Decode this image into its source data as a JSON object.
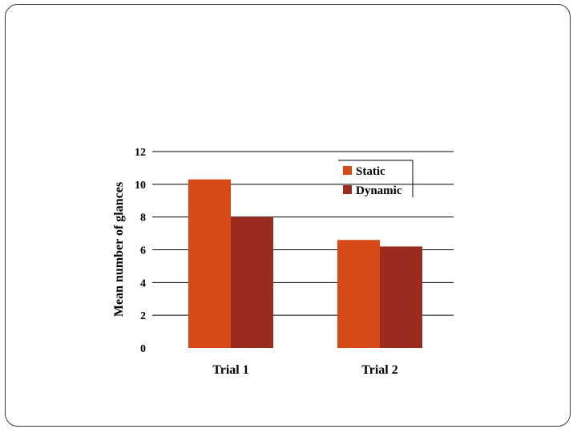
{
  "chart_data": {
    "type": "bar",
    "title": "",
    "xlabel": "",
    "ylabel": "Mean number of glances",
    "categories": [
      "Trial 1",
      "Trial 2"
    ],
    "series": [
      {
        "name": "Static",
        "values": [
          10.3,
          6.6
        ],
        "color": "#d64a17"
      },
      {
        "name": "Dynamic",
        "values": [
          8.0,
          6.2
        ],
        "color": "#9b2b1f"
      }
    ],
    "ylim": [
      0,
      12
    ],
    "yticks": [
      0,
      2,
      4,
      6,
      8,
      10,
      12
    ],
    "grid": true,
    "legend_position": "top-right"
  }
}
